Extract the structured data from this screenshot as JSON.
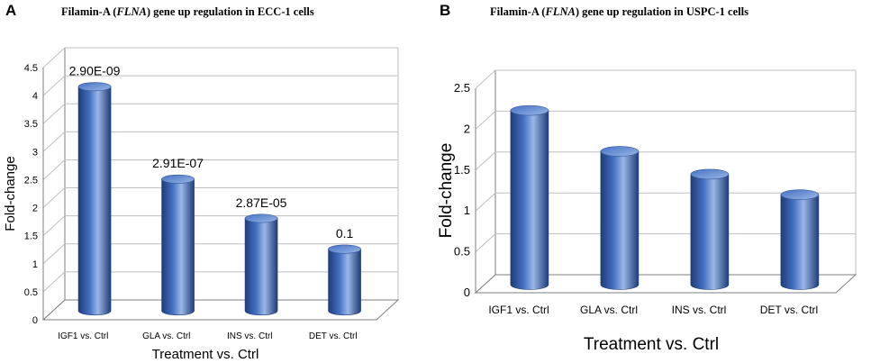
{
  "colors": {
    "bar_front": "#4472c4",
    "bar_dark": "#1f3c78",
    "bar_light": "#9ab7e6",
    "gridline": "#bfbfbf",
    "wall": "#7f7f7f"
  },
  "chart_data": [
    {
      "panel": "A",
      "type": "bar",
      "title": {
        "prefix": "Filamin-A (",
        "gene": "FLNA",
        "suffix": ") gene up regulation in ECC-1 cells"
      },
      "xlabel": "Treatment vs. Ctrl",
      "ylabel": "Fold-change",
      "categories": [
        "IGF1 vs. Ctrl",
        "GLA vs. Ctrl",
        "INS vs. Ctrl",
        "DET vs. Ctrl"
      ],
      "values": [
        4.0,
        2.35,
        1.65,
        1.1
      ],
      "data_labels": [
        "2.90E-09",
        "2.91E-07",
        "2.87E-05",
        "0.1"
      ],
      "ylim": [
        0,
        4.5
      ],
      "yticks": [
        "0",
        "0.5",
        "1",
        "1.5",
        "2",
        "2.5",
        "3",
        "3.5",
        "4",
        "4.5"
      ],
      "grid": true
    },
    {
      "panel": "B",
      "type": "bar",
      "title": {
        "prefix": "Filamin-A (",
        "gene": "FLNA",
        "suffix": ") gene up regulation in USPC-1 cells"
      },
      "xlabel": "Treatment vs. Ctrl",
      "ylabel": "Fold-change",
      "categories": [
        "IGF1 vs. Ctrl",
        "GLA vs. Ctrl",
        "INS vs. Ctrl",
        "DET vs. Ctrl"
      ],
      "values": [
        2.13,
        1.63,
        1.35,
        1.1
      ],
      "data_labels": [],
      "ylim": [
        0,
        2.5
      ],
      "yticks": [
        "0",
        "0.5",
        "1",
        "1.5",
        "2",
        "2.5"
      ],
      "grid": true
    }
  ]
}
